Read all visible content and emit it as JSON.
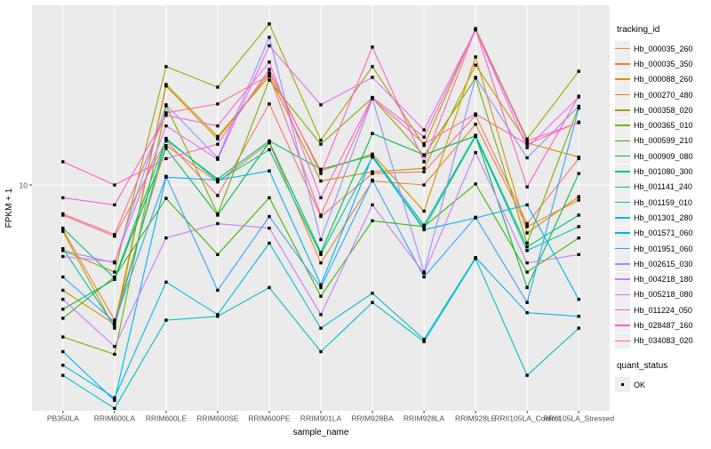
{
  "figure": {
    "background": "#FFFFFF",
    "panel_background": "#EBEBEB",
    "grid_color": "#FFFFFF",
    "tick_color": "#333333",
    "tick_label_color": "#4D4D4D",
    "point_color": "#000000"
  },
  "y_axis": {
    "title": "FPKM + 1",
    "tick_labels": [
      "10"
    ]
  },
  "x_axis": {
    "title": "sample_name"
  },
  "legends": {
    "tracking": {
      "title": "tracking_id"
    },
    "quant": {
      "title": "quant_status",
      "items": [
        {
          "label": "OK",
          "shape": "filled-square",
          "color": "#000000"
        }
      ]
    }
  },
  "chart_data": {
    "type": "line",
    "title": "",
    "xlabel": "sample_name",
    "ylabel": "FPKM + 1",
    "y_scale": "log10",
    "ylim": [
      1.05,
      60
    ],
    "y_breaks": [
      10
    ],
    "grid": true,
    "legend_position": "right",
    "point_shape": "filled-square",
    "point_color": "#000000",
    "categories": [
      "PB350LA",
      "RRIM600LA",
      "RRIM600LE",
      "RRIM600SE",
      "RRIM600PE",
      "RRIM901LA",
      "RRIM928BA",
      "RRIM928LA",
      "RRIM928LE",
      "RRII105LA_Control",
      "RRII105LA_Stressed"
    ],
    "series": [
      {
        "name": "Hb_000035_260",
        "color": "#F8766D",
        "values": [
          7.4,
          6.0,
          15.5,
          9.0,
          22.4,
          7.3,
          11.2,
          11.4,
          20.0,
          6.8,
          13.0
        ]
      },
      {
        "name": "Hb_000035_350",
        "color": "#EA8331",
        "values": [
          6.4,
          2.6,
          14.8,
          10.3,
          15.2,
          4.6,
          10.4,
          10.0,
          18.3,
          6.6,
          8.6
        ]
      },
      {
        "name": "Hb_000088_260",
        "color": "#D89000",
        "values": [
          3.5,
          2.5,
          26.8,
          15.8,
          30.5,
          11.5,
          13.6,
          7.7,
          35.8,
          6.2,
          8.9
        ]
      },
      {
        "name": "Hb_000270_480",
        "color": "#C09B00",
        "values": [
          6.3,
          2.4,
          27.2,
          16.2,
          29.5,
          10.4,
          11.4,
          11.8,
          33.0,
          15.2,
          13.2
        ]
      },
      {
        "name": "Hb_000358_020",
        "color": "#A3A500",
        "values": [
          5.2,
          4.2,
          32.5,
          26.5,
          49.7,
          15.6,
          32.5,
          14.8,
          47.5,
          15.8,
          31.0
        ]
      },
      {
        "name": "Hb_000365_010",
        "color": "#7CAE00",
        "values": [
          2.2,
          1.85,
          22.0,
          7.5,
          28.4,
          15.0,
          23.8,
          13.4,
          29.0,
          5.6,
          21.8
        ]
      },
      {
        "name": "Hb_000599_210",
        "color": "#39B600",
        "values": [
          2.65,
          4.0,
          8.75,
          5.0,
          8.8,
          3.3,
          7.0,
          6.6,
          10.1,
          4.2,
          5.9
        ]
      },
      {
        "name": "Hb_000909_080",
        "color": "#00BB4E",
        "values": [
          2.9,
          3.9,
          14.4,
          7.4,
          15.3,
          5.1,
          16.7,
          13.5,
          16.3,
          3.6,
          11.2
        ]
      },
      {
        "name": "Hb_001080_300",
        "color": "#00BF7D",
        "values": [
          6.5,
          3.95,
          15.7,
          10.6,
          15.5,
          11.7,
          13.4,
          6.7,
          16.4,
          5.4,
          7.4
        ]
      },
      {
        "name": "Hb_001141_240",
        "color": "#00C1A3",
        "values": [
          5.3,
          2.45,
          15.9,
          10.4,
          14.2,
          5.0,
          13.2,
          6.5,
          16.2,
          5.2,
          6.6
        ]
      },
      {
        "name": "Hb_001159_010",
        "color": "#00BFC4",
        "values": [
          1.5,
          1.08,
          2.6,
          2.7,
          3.6,
          1.9,
          3.1,
          2.1,
          4.8,
          1.5,
          2.4
        ]
      },
      {
        "name": "Hb_001301_280",
        "color": "#00BAE0",
        "values": [
          1.66,
          1.2,
          3.8,
          2.75,
          5.6,
          2.4,
          3.4,
          2.15,
          4.85,
          2.8,
          2.7
        ]
      },
      {
        "name": "Hb_001571_060",
        "color": "#00B0F6",
        "values": [
          1.9,
          1.17,
          10.8,
          10.5,
          11.5,
          3.7,
          13.3,
          6.4,
          7.2,
          8.2,
          3.2
        ]
      },
      {
        "name": "Hb_001951_060",
        "color": "#35A2FF",
        "values": [
          4.0,
          2.55,
          10.9,
          3.5,
          7.3,
          3.6,
          10.5,
          4.0,
          7.25,
          3.1,
          21.5
        ]
      },
      {
        "name": "Hb_002615_030",
        "color": "#9590FF",
        "values": [
          5.2,
          4.6,
          22.2,
          13.1,
          43.5,
          5.8,
          23.6,
          4.2,
          29.2,
          13.1,
          21.9
        ]
      },
      {
        "name": "Hb_004218_180",
        "color": "#C77CFF",
        "values": [
          3.2,
          2.0,
          5.9,
          6.8,
          6.5,
          2.75,
          8.2,
          4.15,
          13.8,
          4.6,
          5.0
        ]
      },
      {
        "name": "Hb_005218_080",
        "color": "#E76BF3",
        "values": [
          4.9,
          4.65,
          18.0,
          12.9,
          40.0,
          22.2,
          29.2,
          17.3,
          46.8,
          14.5,
          24.0
        ]
      },
      {
        "name": "Hb_011224_050",
        "color": "#FA62DB",
        "values": [
          8.8,
          8.2,
          20.0,
          18.0,
          34.0,
          8.8,
          23.9,
          16.1,
          47.0,
          15.5,
          18.6
        ]
      },
      {
        "name": "Hb_028487_160",
        "color": "#FF62BC",
        "values": [
          12.6,
          10.0,
          13.0,
          15.0,
          31.6,
          11.2,
          39.5,
          12.6,
          47.2,
          9.8,
          24.2
        ]
      },
      {
        "name": "Hb_034083_020",
        "color": "#FF6A98",
        "values": [
          7.5,
          6.1,
          20.5,
          22.4,
          29.8,
          7.4,
          23.7,
          15.1,
          20.3,
          15.0,
          18.7
        ]
      }
    ]
  }
}
